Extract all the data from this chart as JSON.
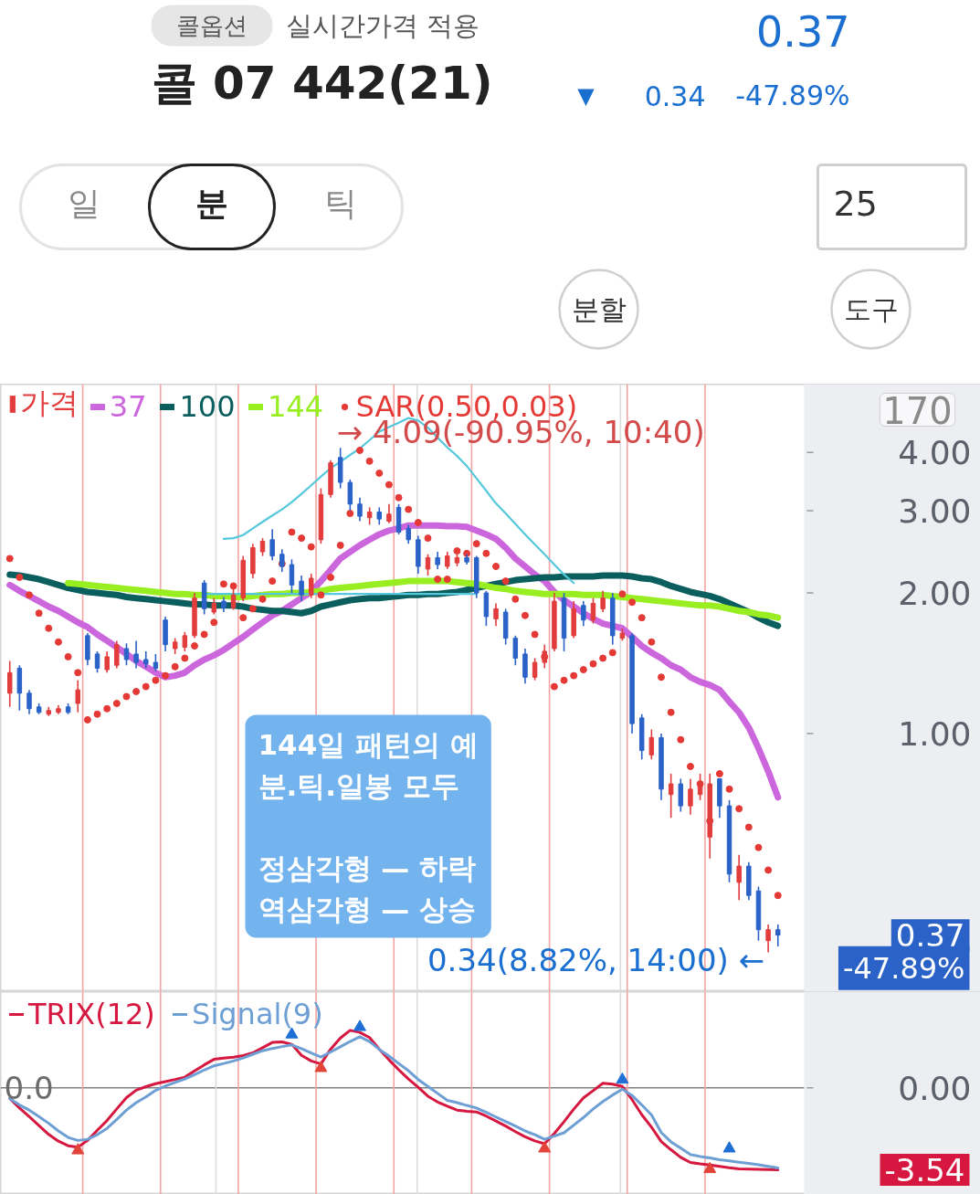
{
  "chart_data": [
    {
      "type": "candlestick",
      "title": "콜 07 442(21)",
      "log": "y",
      "ylim": [
        0.28,
        5.6
      ],
      "yticks": [
        {
          "value": 4,
          "label": "4.00"
        },
        {
          "value": 3,
          "label": "3.00"
        },
        {
          "value": 2,
          "label": "2.00"
        },
        {
          "value": 1,
          "label": "1.00"
        },
        {
          "value": 0.37,
          "label": "0.37"
        }
      ],
      "tick_labels": "y",
      "legend": "top left",
      "categories": [
        null,
        null,
        null,
        null,
        null,
        null,
        null,
        null,
        null,
        null,
        null,
        null,
        null,
        null,
        null,
        null,
        null,
        null,
        null,
        null,
        null,
        null,
        null,
        null,
        null,
        null,
        null,
        null,
        null,
        null,
        null,
        null,
        null,
        null,
        null,
        null,
        null,
        null,
        null,
        null,
        null,
        null,
        null,
        null,
        null,
        null,
        null,
        null,
        null,
        null,
        null,
        null,
        null,
        null,
        null,
        null,
        null,
        null,
        null,
        null,
        null,
        null,
        null,
        null,
        null,
        null,
        null,
        null,
        null,
        null,
        null,
        null,
        null,
        null,
        null,
        null,
        null,
        null,
        null,
        null
      ],
      "series": [
        {
          "name": "가격",
          "type": "candlestick",
          "color": "#e23c3c",
          "ohlc": [
            [
              1.22,
              1.43,
              1.14,
              1.35
            ],
            [
              1.38,
              1.4,
              1.12,
              1.22
            ],
            [
              1.22,
              1.24,
              1.1,
              1.13
            ],
            [
              1.14,
              1.16,
              1.1,
              1.11
            ],
            [
              1.1,
              1.14,
              1.09,
              1.12
            ],
            [
              1.11,
              1.15,
              1.1,
              1.13
            ],
            [
              1.14,
              1.16,
              1.1,
              1.11
            ],
            [
              1.16,
              1.3,
              1.11,
              1.24
            ],
            [
              1.62,
              1.64,
              1.4,
              1.44
            ],
            [
              1.48,
              1.5,
              1.35,
              1.38
            ],
            [
              1.37,
              1.5,
              1.35,
              1.46
            ],
            [
              1.4,
              1.58,
              1.38,
              1.55
            ],
            [
              1.52,
              1.56,
              1.4,
              1.44
            ],
            [
              1.48,
              1.58,
              1.38,
              1.42
            ],
            [
              1.44,
              1.5,
              1.38,
              1.41
            ],
            [
              1.42,
              1.48,
              1.36,
              1.38
            ],
            [
              1.75,
              1.78,
              1.5,
              1.55
            ],
            [
              1.52,
              1.6,
              1.48,
              1.57
            ],
            [
              1.53,
              1.65,
              1.5,
              1.62
            ],
            [
              1.62,
              2.0,
              1.6,
              1.95
            ],
            [
              2.1,
              2.13,
              1.8,
              1.85
            ],
            [
              1.82,
              1.95,
              1.8,
              1.9
            ],
            [
              1.92,
              1.96,
              1.82,
              1.86
            ],
            [
              1.86,
              2.05,
              1.84,
              1.98
            ],
            [
              1.95,
              2.4,
              1.92,
              2.35
            ],
            [
              2.2,
              2.55,
              2.15,
              2.5
            ],
            [
              2.45,
              2.62,
              2.4,
              2.58
            ],
            [
              2.6,
              2.74,
              2.35,
              2.4
            ],
            [
              2.42,
              2.48,
              2.22,
              2.28
            ],
            [
              2.3,
              2.36,
              2.0,
              2.08
            ],
            [
              2.12,
              2.18,
              1.92,
              1.98
            ],
            [
              1.98,
              2.2,
              1.95,
              2.15
            ],
            [
              2.6,
              3.35,
              2.55,
              3.25
            ],
            [
              3.25,
              3.85,
              3.2,
              3.8
            ],
            [
              3.9,
              4.09,
              3.35,
              3.45
            ],
            [
              3.45,
              3.5,
              3.0,
              3.1
            ],
            [
              3.1,
              3.2,
              2.85,
              2.92
            ],
            [
              2.9,
              3.05,
              2.8,
              2.98
            ],
            [
              2.98,
              3.05,
              2.8,
              2.88
            ],
            [
              2.85,
              3.1,
              2.82,
              2.95
            ],
            [
              3.05,
              3.1,
              2.67,
              2.7
            ],
            [
              2.75,
              2.8,
              2.55,
              2.6
            ],
            [
              2.6,
              2.65,
              2.2,
              2.28
            ],
            [
              2.25,
              2.42,
              2.18,
              2.38
            ],
            [
              2.38,
              2.45,
              2.25,
              2.3
            ],
            [
              2.28,
              2.45,
              2.25,
              2.4
            ],
            [
              2.32,
              2.42,
              2.28,
              2.38
            ],
            [
              2.38,
              2.42,
              2.3,
              2.33
            ],
            [
              2.38,
              2.4,
              1.95,
              2.0
            ],
            [
              2.0,
              2.02,
              1.7,
              1.78
            ],
            [
              1.76,
              1.9,
              1.7,
              1.85
            ],
            [
              1.82,
              1.85,
              1.55,
              1.6
            ],
            [
              1.6,
              1.62,
              1.4,
              1.45
            ],
            [
              1.48,
              1.52,
              1.28,
              1.32
            ],
            [
              1.32,
              1.45,
              1.3,
              1.42
            ],
            [
              1.42,
              1.55,
              1.38,
              1.5
            ],
            [
              1.52,
              2.0,
              1.5,
              1.92
            ],
            [
              1.95,
              2.0,
              1.5,
              1.6
            ],
            [
              1.62,
              1.92,
              1.6,
              1.85
            ],
            [
              1.88,
              1.92,
              1.7,
              1.75
            ],
            [
              1.75,
              1.95,
              1.72,
              1.9
            ],
            [
              1.85,
              2.02,
              1.82,
              1.95
            ],
            [
              1.95,
              2.0,
              1.55,
              1.62
            ],
            [
              1.6,
              1.68,
              1.58,
              1.64
            ],
            [
              1.62,
              1.64,
              1.0,
              1.05
            ],
            [
              1.08,
              1.1,
              0.88,
              0.92
            ],
            [
              0.9,
              1.02,
              0.88,
              0.98
            ],
            [
              0.98,
              1.0,
              0.72,
              0.76
            ],
            [
              0.74,
              0.82,
              0.66,
              0.78
            ],
            [
              0.78,
              0.8,
              0.68,
              0.7
            ],
            [
              0.7,
              0.8,
              0.67,
              0.76
            ],
            [
              0.74,
              0.82,
              0.72,
              0.78
            ],
            [
              0.6,
              0.82,
              0.54,
              0.78
            ],
            [
              0.8,
              0.8,
              0.66,
              0.7
            ],
            [
              0.7,
              0.72,
              0.48,
              0.5
            ],
            [
              0.48,
              0.55,
              0.44,
              0.52
            ],
            [
              0.52,
              0.53,
              0.44,
              0.45
            ],
            [
              0.46,
              0.47,
              0.36,
              0.38
            ],
            [
              0.36,
              0.39,
              0.34,
              0.38
            ],
            [
              0.38,
              0.39,
              0.35,
              0.37
            ]
          ],
          "colors": [
            "#e23c3c",
            "#2a62c8",
            "#2a62c8",
            "#2a62c8",
            "#e23c3c",
            "#e23c3c",
            "#2a62c8",
            "#e23c3c",
            "#2a62c8",
            "#2a62c8",
            "#e23c3c",
            "#e23c3c",
            "#2a62c8",
            "#2a62c8",
            "#2a62c8",
            "#2a62c8",
            "#2a62c8",
            "#e23c3c",
            "#e23c3c",
            "#e23c3c",
            "#2a62c8",
            "#e23c3c",
            "#2a62c8",
            "#e23c3c",
            "#e23c3c",
            "#e23c3c",
            "#e23c3c",
            "#2a62c8",
            "#2a62c8",
            "#2a62c8",
            "#2a62c8",
            "#e23c3c",
            "#e23c3c",
            "#e23c3c",
            "#2a62c8",
            "#2a62c8",
            "#2a62c8",
            "#e23c3c",
            "#2a62c8",
            "#e23c3c",
            "#2a62c8",
            "#2a62c8",
            "#2a62c8",
            "#e23c3c",
            "#2a62c8",
            "#e23c3c",
            "#e23c3c",
            "#2a62c8",
            "#2a62c8",
            "#2a62c8",
            "#e23c3c",
            "#2a62c8",
            "#2a62c8",
            "#2a62c8",
            "#e23c3c",
            "#e23c3c",
            "#e23c3c",
            "#2a62c8",
            "#e23c3c",
            "#2a62c8",
            "#e23c3c",
            "#e23c3c",
            "#2a62c8",
            "#e23c3c",
            "#2a62c8",
            "#2a62c8",
            "#e23c3c",
            "#2a62c8",
            "#e23c3c",
            "#2a62c8",
            "#e23c3c",
            "#e23c3c",
            "#e23c3c",
            "#2a62c8",
            "#2a62c8",
            "#e23c3c",
            "#2a62c8",
            "#2a62c8",
            "#e23c3c",
            "#2a62c8"
          ]
        },
        {
          "name": "37",
          "type": "line",
          "color": "#cc66dd",
          "values": [
            2.08,
            2.02,
            1.97,
            1.92,
            1.87,
            1.83,
            1.78,
            1.73,
            1.69,
            1.63,
            1.58,
            1.53,
            1.48,
            1.43,
            1.39,
            1.35,
            1.32,
            1.33,
            1.35,
            1.4,
            1.44,
            1.47,
            1.51,
            1.56,
            1.61,
            1.67,
            1.73,
            1.79,
            1.83,
            1.89,
            1.95,
            2.01,
            2.12,
            2.24,
            2.37,
            2.45,
            2.53,
            2.6,
            2.67,
            2.72,
            2.75,
            2.79,
            2.79,
            2.79,
            2.79,
            2.78,
            2.78,
            2.77,
            2.72,
            2.67,
            2.61,
            2.5,
            2.37,
            2.28,
            2.19,
            2.12,
            2.01,
            1.93,
            1.87,
            1.81,
            1.76,
            1.72,
            1.7,
            1.68,
            1.61,
            1.54,
            1.49,
            1.45,
            1.4,
            1.37,
            1.32,
            1.29,
            1.27,
            1.24,
            1.17,
            1.11,
            1.03,
            0.93,
            0.83,
            0.73
          ]
        },
        {
          "name": "100",
          "type": "line",
          "color": "#0b5e5e",
          "values": [
            2.19,
            2.18,
            2.16,
            2.14,
            2.11,
            2.08,
            2.05,
            2.03,
            2.01,
            2.0,
            1.99,
            1.98,
            1.96,
            1.95,
            1.94,
            1.93,
            1.92,
            1.91,
            1.9,
            1.89,
            1.89,
            1.88,
            1.88,
            1.88,
            1.87,
            1.85,
            1.84,
            1.83,
            1.83,
            1.82,
            1.81,
            1.83,
            1.87,
            1.89,
            1.91,
            1.93,
            1.94,
            1.95,
            1.95,
            1.96,
            1.97,
            1.98,
            1.98,
            1.99,
            1.99,
            2.0,
            2.01,
            2.03,
            2.05,
            2.07,
            2.09,
            2.11,
            2.13,
            2.14,
            2.15,
            2.16,
            2.16,
            2.17,
            2.17,
            2.17,
            2.17,
            2.18,
            2.18,
            2.18,
            2.17,
            2.15,
            2.14,
            2.11,
            2.07,
            2.04,
            2.01,
            1.99,
            1.97,
            1.94,
            1.9,
            1.86,
            1.82,
            1.77,
            1.73,
            1.7
          ]
        },
        {
          "name": "144",
          "type": "line",
          "color": "#99ee22",
          "values": [
            null,
            null,
            null,
            null,
            null,
            null,
            2.1,
            2.09,
            2.08,
            2.07,
            2.06,
            2.05,
            2.04,
            2.03,
            2.02,
            2.01,
            2.0,
            1.99,
            1.99,
            1.98,
            1.98,
            1.97,
            1.97,
            1.96,
            1.96,
            1.97,
            1.98,
            1.99,
            1.99,
            2.0,
            2.0,
            2.01,
            2.02,
            2.04,
            2.05,
            2.06,
            2.07,
            2.08,
            2.09,
            2.1,
            2.11,
            2.12,
            2.12,
            2.12,
            2.12,
            2.12,
            2.11,
            2.1,
            2.09,
            2.07,
            2.05,
            2.04,
            2.02,
            2.01,
            2.0,
            1.99,
            1.99,
            1.99,
            1.99,
            1.98,
            1.98,
            1.98,
            1.97,
            1.96,
            1.95,
            1.94,
            1.93,
            1.92,
            1.91,
            1.9,
            1.89,
            1.88,
            1.88,
            1.87,
            1.85,
            1.83,
            1.82,
            1.8,
            1.79,
            1.77
          ]
        },
        {
          "name": "SAR(0.50,0.03)",
          "type": "scatter",
          "marker": "circle",
          "color": "#e53935",
          "values": [
            2.37,
            2.16,
            1.98,
            1.81,
            1.68,
            1.57,
            1.46,
            1.35,
            1.07,
            1.1,
            1.13,
            1.16,
            1.2,
            1.23,
            1.26,
            1.3,
            1.33,
            1.39,
            1.45,
            1.54,
            1.63,
            1.73,
            2.09,
            2.07,
            1.77,
            1.85,
            1.94,
            2.12,
            2.31,
            2.7,
            2.62,
            2.51,
            1.98,
            2.16,
            2.53,
            2.96,
            4.04,
            3.83,
            3.61,
            3.41,
            3.2,
            3.02,
            2.83,
            2.62,
            2.14,
            2.14,
            2.46,
            2.43,
            2.55,
            2.43,
            2.28,
            2.12,
            1.94,
            1.79,
            1.63,
            1.46,
            1.26,
            1.3,
            1.33,
            1.37,
            1.41,
            1.45,
            1.49,
            1.99,
            1.91,
            1.77,
            1.57,
            1.32,
            1.11,
            0.97,
            0.85,
            0.78,
            0.65,
            0.82,
            0.76,
            0.69,
            0.63,
            0.57,
            0.51,
            0.45
          ]
        },
        {
          "type": "line",
          "color": "#55c8dd",
          "values": [
            null,
            null,
            null,
            null,
            null,
            null,
            null,
            null,
            null,
            null,
            null,
            null,
            null,
            null,
            null,
            null,
            null,
            null,
            null,
            null,
            null,
            null,
            2.61,
            2.62,
            2.66,
            2.75,
            2.84,
            2.93,
            3.02,
            3.13,
            3.26,
            3.4,
            3.55,
            3.7,
            3.82,
            3.95,
            4.08,
            4.25,
            4.43,
            4.53,
            4.63,
            4.74,
            4.68,
            4.52,
            4.3,
            4.1,
            3.93,
            3.74,
            3.52,
            3.31,
            3.11,
            2.96,
            2.81,
            2.67,
            2.54,
            2.42,
            2.3,
            2.19,
            2.1,
            null,
            null,
            null,
            null,
            null,
            null,
            null,
            null,
            null,
            null,
            null,
            null,
            null,
            null,
            null,
            null,
            null,
            null,
            null,
            null,
            null
          ]
        },
        {
          "type": "line",
          "color": "#55c8dd",
          "values": [
            null,
            null,
            null,
            null,
            null,
            null,
            null,
            null,
            null,
            null,
            null,
            null,
            null,
            null,
            null,
            null,
            null,
            null,
            null,
            null,
            1.99,
            1.99,
            1.99,
            1.99,
            1.99,
            1.99,
            1.99,
            1.99,
            1.99,
            1.99,
            1.99,
            1.99,
            1.99,
            1.99,
            1.99,
            1.99,
            1.99,
            1.99,
            1.99,
            1.99,
            1.99,
            1.99,
            1.99,
            1.99,
            1.99,
            1.99,
            1.99,
            1.99,
            1.99,
            null,
            null,
            null,
            null,
            null,
            null,
            null,
            null,
            null,
            null,
            null,
            null,
            null,
            null,
            null,
            null,
            null,
            null,
            null,
            null,
            null,
            null,
            null,
            null,
            null,
            null,
            null,
            null,
            null,
            null,
            null
          ]
        }
      ],
      "annotations": [
        "콜옵션",
        "실시간가격 적용",
        "0.37",
        "▼",
        "0.34",
        "-47.89%",
        "일",
        "분",
        "틱",
        "25",
        "분할",
        "도구",
        "144일 패턴의 예\n분.틱.일봉 모두\n\n정삼각형 — 하락\n역삼각형 — 상승",
        "170",
        "→ 4.09(-90.95%, 10:40)",
        "0.34(8.82%, 14:00) ←",
        "-47.89%"
      ]
    },
    {
      "type": "line",
      "ylim": [
        -4.6,
        4.15
      ],
      "yticks": [
        {
          "value": 0,
          "label": "0.00"
        },
        {
          "value": -3.54,
          "label": "-3.54"
        }
      ],
      "tick_labels": "y",
      "legend": "top left",
      "categories": [
        null,
        null,
        null,
        null,
        null,
        null,
        null,
        null,
        null,
        null,
        null,
        null,
        null,
        null,
        null,
        null,
        null,
        null,
        null,
        null,
        null,
        null,
        null,
        null,
        null,
        null,
        null,
        null,
        null,
        null,
        null,
        null,
        null,
        null,
        null,
        null,
        null,
        null,
        null,
        null,
        null,
        null,
        null,
        null,
        null,
        null,
        null,
        null,
        null,
        null,
        null,
        null,
        null,
        null,
        null,
        null,
        null,
        null,
        null,
        null,
        null,
        null,
        null,
        null,
        null,
        null,
        null,
        null,
        null,
        null,
        null,
        null,
        null,
        null,
        null,
        null,
        null,
        null,
        null,
        null
      ],
      "series": [
        {
          "name": "TRIX(12)",
          "color": "#d6173f",
          "values": [
            -0.46,
            -0.87,
            -1.24,
            -1.63,
            -2.01,
            -2.3,
            -2.5,
            -2.56,
            -2.27,
            -1.83,
            -1.41,
            -0.91,
            -0.42,
            -0.1,
            0.05,
            0.18,
            0.27,
            0.36,
            0.46,
            0.73,
            0.99,
            1.23,
            1.28,
            1.32,
            1.39,
            1.51,
            1.73,
            1.96,
            1.98,
            1.88,
            1.4,
            1.16,
            1.03,
            1.67,
            2.15,
            2.48,
            2.39,
            2.17,
            1.67,
            1.21,
            0.78,
            0.38,
            0.03,
            -0.36,
            -0.61,
            -0.79,
            -0.96,
            -1.01,
            -1.04,
            -1.22,
            -1.43,
            -1.65,
            -1.89,
            -2.11,
            -2.29,
            -2.41,
            -1.97,
            -1.46,
            -0.92,
            -0.43,
            -0.12,
            0.2,
            0.16,
            0.06,
            -0.51,
            -1.16,
            -1.7,
            -2.32,
            -2.67,
            -3.0,
            -3.22,
            -3.28,
            -3.33,
            -3.39,
            -3.45,
            -3.5,
            -3.51,
            -3.52,
            -3.53,
            -3.54
          ]
        },
        {
          "name": "Signal(9)",
          "color": "#6d9fd4",
          "values": [
            -0.46,
            -0.74,
            -0.96,
            -1.24,
            -1.53,
            -1.86,
            -2.14,
            -2.27,
            -2.22,
            -2.02,
            -1.75,
            -1.36,
            -0.96,
            -0.64,
            -0.39,
            -0.11,
            0.08,
            0.23,
            0.38,
            0.57,
            0.77,
            0.95,
            1.05,
            1.16,
            1.29,
            1.45,
            1.6,
            1.7,
            1.78,
            1.85,
            1.69,
            1.5,
            1.33,
            1.55,
            1.77,
            2.0,
            2.2,
            2.0,
            1.66,
            1.37,
            1.05,
            0.74,
            0.36,
            0.06,
            -0.24,
            -0.54,
            -0.64,
            -0.76,
            -0.87,
            -1.06,
            -1.26,
            -1.45,
            -1.65,
            -1.86,
            -2.02,
            -2.22,
            -2.08,
            -1.94,
            -1.61,
            -1.28,
            -0.91,
            -0.59,
            -0.31,
            -0.06,
            -0.33,
            -0.74,
            -1.17,
            -1.93,
            -2.33,
            -2.6,
            -2.88,
            -2.96,
            -3.02,
            -3.1,
            -3.15,
            -3.21,
            -3.26,
            -3.32,
            -3.39,
            -3.46
          ]
        },
        {
          "type": "scatter",
          "marker": "triangle",
          "color": "#e2443a",
          "values": [
            null,
            null,
            null,
            null,
            null,
            null,
            null,
            -2.7,
            null,
            null,
            null,
            null,
            null,
            null,
            null,
            null,
            null,
            null,
            null,
            null,
            null,
            null,
            null,
            null,
            null,
            null,
            null,
            null,
            null,
            null,
            null,
            null,
            0.85,
            null,
            null,
            null,
            null,
            null,
            null,
            null,
            null,
            null,
            null,
            null,
            null,
            null,
            null,
            null,
            null,
            null,
            null,
            null,
            null,
            null,
            null,
            -2.62,
            null,
            null,
            null,
            null,
            null,
            null,
            null,
            null,
            null,
            null,
            null,
            null,
            null,
            null,
            null,
            null,
            -3.51,
            null,
            null,
            null,
            null,
            null,
            null,
            null
          ]
        },
        {
          "type": "scatter",
          "marker": "triangle",
          "color": "#1f6fd6",
          "values": [
            null,
            null,
            null,
            null,
            null,
            null,
            null,
            null,
            null,
            null,
            null,
            null,
            null,
            null,
            null,
            null,
            null,
            null,
            null,
            null,
            null,
            null,
            null,
            null,
            null,
            null,
            null,
            null,
            null,
            2.3,
            null,
            null,
            null,
            null,
            null,
            null,
            2.62,
            null,
            null,
            null,
            null,
            null,
            null,
            null,
            null,
            null,
            null,
            null,
            null,
            null,
            null,
            null,
            null,
            null,
            null,
            null,
            null,
            null,
            null,
            null,
            null,
            null,
            null,
            0.35,
            null,
            null,
            null,
            null,
            null,
            null,
            null,
            null,
            null,
            null,
            -2.62,
            null,
            null,
            null,
            null,
            null
          ]
        }
      ],
      "ref_lines": [
        {
          "axis": "y",
          "value": 0,
          "label": "0.0",
          "color": "#808080"
        }
      ]
    }
  ]
}
